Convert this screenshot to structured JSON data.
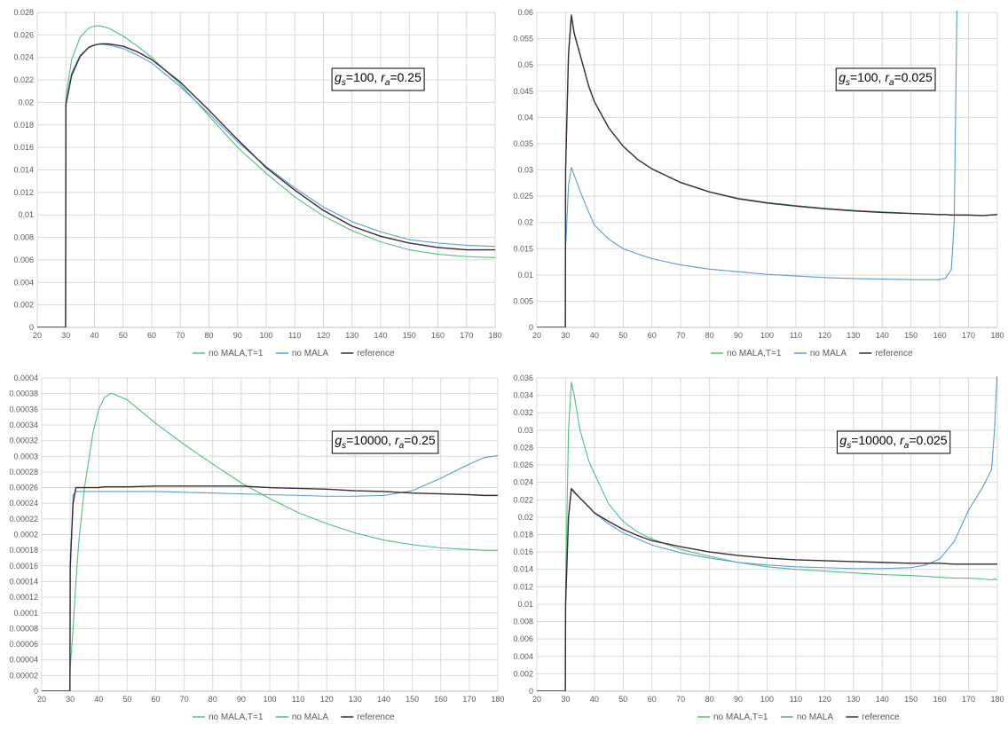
{
  "colors": {
    "no_mala_t1": "#4ec07c",
    "no_mala": "#5b9bd5",
    "reference": "#3a2a32",
    "reference_noise": "#b02020",
    "grid": "#d9d9d9",
    "axis": "#bfbfbf"
  },
  "legend": [
    "no MALA,T=1",
    "no MALA",
    "reference"
  ],
  "chart_data": [
    {
      "type": "line",
      "annotation": {
        "g_label": "g",
        "g_sub": "s",
        "g_value": "=100, ",
        "r_label": "r",
        "r_sub": "a",
        "r_value": "=0.25"
      },
      "xlim": [
        20,
        180
      ],
      "ylim": [
        0,
        0.028
      ],
      "x_ticks": [
        "20",
        "30",
        "40",
        "50",
        "60",
        "70",
        "80",
        "90",
        "100",
        "110",
        "120",
        "130",
        "140",
        "150",
        "160",
        "170",
        "180"
      ],
      "y_ticks": [
        "0",
        "0.002",
        "0.004",
        "0.006",
        "0.008",
        "0.01",
        "0.012",
        "0.014",
        "0.016",
        "0.018",
        "0.02",
        "0.022",
        "0.024",
        "0.026",
        "0.028"
      ],
      "x": [
        20,
        29.9,
        30,
        32,
        35,
        38,
        40,
        42,
        45,
        50,
        55,
        60,
        70,
        80,
        90,
        100,
        110,
        120,
        130,
        140,
        150,
        160,
        170,
        180
      ],
      "series": [
        {
          "name": "no MALA,T=1",
          "values": [
            0,
            0,
            0.0205,
            0.0238,
            0.0258,
            0.0266,
            0.0268,
            0.0268,
            0.0266,
            0.0259,
            0.025,
            0.024,
            0.0216,
            0.0188,
            0.016,
            0.0137,
            0.0116,
            0.0099,
            0.0086,
            0.0076,
            0.0069,
            0.0065,
            0.0063,
            0.0062
          ]
        },
        {
          "name": "no MALA",
          "values": [
            0,
            0,
            0.02,
            0.0226,
            0.0242,
            0.0249,
            0.0251,
            0.0252,
            0.0251,
            0.0248,
            0.0242,
            0.0235,
            0.0214,
            0.019,
            0.0165,
            0.0143,
            0.0124,
            0.0107,
            0.0094,
            0.0085,
            0.0078,
            0.0075,
            0.0073,
            0.0072
          ]
        },
        {
          "name": "reference",
          "values": [
            0,
            0,
            0.0198,
            0.0224,
            0.0241,
            0.0249,
            0.0251,
            0.0252,
            0.0252,
            0.025,
            0.0245,
            0.0238,
            0.0218,
            0.0193,
            0.0167,
            0.0142,
            0.0122,
            0.0104,
            0.009,
            0.0081,
            0.0075,
            0.0071,
            0.0069,
            0.0069
          ]
        }
      ]
    },
    {
      "type": "line",
      "annotation": {
        "g_label": "g",
        "g_sub": "s",
        "g_value": "=100, ",
        "r_label": "r",
        "r_sub": "a",
        "r_value": "=0.025"
      },
      "xlim": [
        20,
        180
      ],
      "ylim": [
        0,
        0.06
      ],
      "x_ticks": [
        "20",
        "30",
        "40",
        "50",
        "60",
        "70",
        "80",
        "90",
        "100",
        "110",
        "120",
        "130",
        "140",
        "150",
        "160",
        "170",
        "180"
      ],
      "y_ticks": [
        "0",
        "0.005",
        "0.01",
        "0.015",
        "0.02",
        "0.025",
        "0.03",
        "0.035",
        "0.04",
        "0.045",
        "0.05",
        "0.055",
        "0.06"
      ],
      "x": [
        20,
        29.9,
        30,
        31,
        32,
        33,
        35,
        38,
        40,
        45,
        50,
        55,
        60,
        70,
        80,
        90,
        100,
        110,
        120,
        130,
        140,
        150,
        160,
        162,
        164,
        165,
        166,
        168,
        170,
        175,
        180
      ],
      "series": [
        {
          "name": "no MALA,T=1",
          "values": [
            0,
            0,
            0.03,
            0.052,
            0.059,
            0.056,
            0.052,
            0.046,
            0.043,
            0.038,
            0.0345,
            0.032,
            0.0302,
            0.0276,
            0.0258,
            0.0246,
            0.0238,
            0.0232,
            0.0227,
            0.0223,
            0.022,
            0.0217,
            0.0215,
            0.0215,
            0.0214,
            0.0214,
            0.0214,
            0.0214,
            0.0214,
            0.0213,
            0.0215
          ]
        },
        {
          "name": "no MALA",
          "values": [
            0,
            0,
            0.015,
            0.027,
            0.0305,
            0.029,
            0.026,
            0.022,
            0.0195,
            0.0168,
            0.015,
            0.014,
            0.0131,
            0.0119,
            0.0111,
            0.0106,
            0.0101,
            0.0098,
            0.0095,
            0.0093,
            0.0092,
            0.0091,
            0.0091,
            0.0094,
            0.011,
            0.02,
            0.062,
            null,
            null,
            null,
            null
          ]
        },
        {
          "name": "reference",
          "values": [
            0,
            0,
            0.03,
            0.052,
            0.0595,
            0.056,
            0.052,
            0.046,
            0.043,
            0.038,
            0.0345,
            0.032,
            0.0302,
            0.0276,
            0.0258,
            0.0245,
            0.0237,
            0.0231,
            0.0226,
            0.0222,
            0.0219,
            0.0217,
            0.0215,
            0.0215,
            0.0214,
            0.0214,
            0.0214,
            0.0214,
            0.0214,
            0.0213,
            0.0215
          ]
        }
      ]
    },
    {
      "type": "line",
      "annotation": {
        "g_label": "g",
        "g_sub": "s",
        "g_value": "=10000, ",
        "r_label": "r",
        "r_sub": "a",
        "r_value": "=0.25"
      },
      "xlim": [
        20,
        180
      ],
      "ylim": [
        0,
        0.0004
      ],
      "x_ticks": [
        "20",
        "30",
        "40",
        "50",
        "60",
        "70",
        "80",
        "90",
        "100",
        "110",
        "120",
        "130",
        "140",
        "150",
        "160",
        "170",
        "180"
      ],
      "y_ticks": [
        "0",
        "0.00002",
        "0.00004",
        "0.00006",
        "0.00008",
        "0.0001",
        "0.00012",
        "0.00014",
        "0.00016",
        "0.00018",
        "0.0002",
        "0.00022",
        "0.00024",
        "0.00026",
        "0.00028",
        "0.0003",
        "0.00032",
        "0.00034",
        "0.00036",
        "0.00038",
        "0.0004"
      ],
      "x": [
        20,
        29.9,
        30,
        31,
        32,
        33,
        35,
        38,
        40,
        42,
        44,
        45,
        50,
        60,
        70,
        80,
        90,
        100,
        110,
        120,
        130,
        140,
        150,
        160,
        170,
        175,
        180
      ],
      "series": [
        {
          "name": "no MALA,T=1",
          "values": [
            0,
            0,
            3e-05,
            8e-05,
            0.00014,
            0.00019,
            0.00026,
            0.00033,
            0.00036,
            0.000375,
            0.00038,
            0.00038,
            0.000372,
            0.000342,
            0.000315,
            0.00029,
            0.000266,
            0.000246,
            0.000228,
            0.000214,
            0.000202,
            0.000193,
            0.000187,
            0.000183,
            0.000181,
            0.00018,
            0.00018
          ]
        },
        {
          "name": "no MALA",
          "values": [
            0,
            0,
            0.00015,
            0.00025,
            0.000255,
            0.000255,
            0.000255,
            0.000255,
            0.000255,
            0.000255,
            0.000255,
            0.000255,
            0.000255,
            0.000255,
            0.000254,
            0.000253,
            0.000252,
            0.000251,
            0.00025,
            0.000249,
            0.000249,
            0.00025,
            0.000256,
            0.000272,
            0.00029,
            0.000298,
            0.000301
          ]
        },
        {
          "name": "reference",
          "values": [
            0,
            0,
            0.00016,
            0.00024,
            0.00026,
            0.00026,
            0.00026,
            0.00026,
            0.00026,
            0.000261,
            0.000261,
            0.000261,
            0.000261,
            0.000262,
            0.000262,
            0.000262,
            0.000262,
            0.00026,
            0.000259,
            0.000258,
            0.000256,
            0.000255,
            0.000253,
            0.000252,
            0.000251,
            0.00025,
            0.00025
          ]
        }
      ]
    },
    {
      "type": "line",
      "annotation": {
        "g_label": "g",
        "g_sub": "s",
        "g_value": "=10000, ",
        "r_label": "r",
        "r_sub": "a",
        "r_value": "=0.025"
      },
      "xlim": [
        20,
        180
      ],
      "ylim": [
        0,
        0.036
      ],
      "x_ticks": [
        "20",
        "30",
        "40",
        "50",
        "60",
        "70",
        "80",
        "90",
        "100",
        "110",
        "120",
        "130",
        "140",
        "150",
        "160",
        "170",
        "180"
      ],
      "y_ticks": [
        "0",
        "0.002",
        "0.004",
        "0.006",
        "0.008",
        "0.01",
        "0.012",
        "0.014",
        "0.016",
        "0.018",
        "0.02",
        "0.022",
        "0.024",
        "0.026",
        "0.028",
        "0.03",
        "0.032",
        "0.034",
        "0.036"
      ],
      "x": [
        20,
        29.9,
        30,
        31,
        32,
        33,
        35,
        38,
        40,
        45,
        50,
        55,
        60,
        70,
        80,
        90,
        100,
        110,
        120,
        130,
        140,
        150,
        155,
        160,
        165,
        170,
        175,
        178,
        179,
        180
      ],
      "series": [
        {
          "name": "no MALA,T=1",
          "values": [
            0,
            0,
            0.012,
            0.03,
            0.0355,
            0.034,
            0.03,
            0.0265,
            0.025,
            0.0215,
            0.0195,
            0.0183,
            0.0175,
            0.0163,
            0.0155,
            0.0148,
            0.0143,
            0.014,
            0.0138,
            0.0136,
            0.0134,
            0.0133,
            0.0132,
            0.0131,
            0.013,
            0.013,
            0.0129,
            0.0128,
            0.0129,
            0.0128
          ]
        },
        {
          "name": "no MALA",
          "values": [
            0,
            0,
            0.01,
            0.02,
            0.0232,
            0.0228,
            0.0222,
            0.0212,
            0.0205,
            0.0192,
            0.0182,
            0.0175,
            0.0168,
            0.0159,
            0.0153,
            0.0148,
            0.0145,
            0.0143,
            0.0142,
            0.0141,
            0.0141,
            0.0142,
            0.0145,
            0.0152,
            0.0172,
            0.0208,
            0.0235,
            0.0255,
            0.03,
            0.037
          ]
        },
        {
          "name": "reference",
          "values": [
            0,
            0,
            0.01,
            0.02,
            0.0233,
            0.0229,
            0.0222,
            0.0212,
            0.0205,
            0.0195,
            0.0186,
            0.0179,
            0.0173,
            0.0166,
            0.016,
            0.0156,
            0.0153,
            0.0151,
            0.015,
            0.0149,
            0.0148,
            0.0147,
            0.0147,
            0.0147,
            0.0146,
            0.0146,
            0.0146,
            0.0146,
            0.0146,
            0.0146
          ]
        }
      ]
    }
  ]
}
